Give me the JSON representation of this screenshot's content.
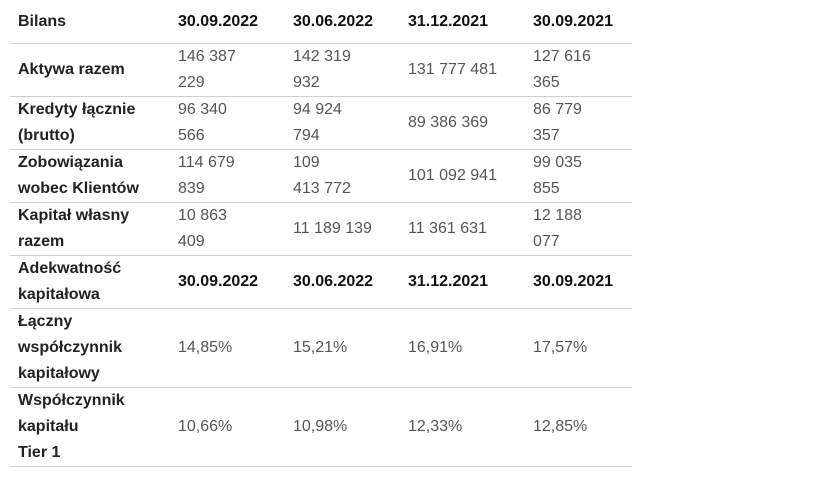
{
  "sections": [
    {
      "header": [
        [
          "Bilans"
        ],
        [
          "30.09.2022"
        ],
        [
          "30.06.2022"
        ],
        [
          "31.12.2021"
        ],
        [
          "30.09.2021"
        ]
      ],
      "rows": [
        [
          [
            "Aktywa razem"
          ],
          [
            "146 387",
            "229"
          ],
          [
            "142 319",
            "932"
          ],
          [
            "131 777 481"
          ],
          [
            "127 616",
            "365"
          ]
        ],
        [
          [
            "Kredyty łącznie",
            "(brutto)"
          ],
          [
            "96 340",
            "566"
          ],
          [
            "94 924",
            "794"
          ],
          [
            "89 386 369"
          ],
          [
            "86 779",
            "357"
          ]
        ],
        [
          [
            "Zobowiązania",
            "wobec Klientów"
          ],
          [
            "114 679",
            "839"
          ],
          [
            "109",
            "413 772"
          ],
          [
            "101 092 941"
          ],
          [
            "99 035",
            "855"
          ]
        ],
        [
          [
            "Kapitał własny",
            "razem"
          ],
          [
            "10 863",
            "409"
          ],
          [
            "11 189 139"
          ],
          [
            "11 361 631"
          ],
          [
            "12 188",
            "077"
          ]
        ]
      ]
    },
    {
      "header": [
        [
          "Adekwatność",
          "kapitałowa"
        ],
        [
          "30.09.2022"
        ],
        [
          "30.06.2022"
        ],
        [
          "31.12.2021"
        ],
        [
          "30.09.2021"
        ]
      ],
      "rows": [
        [
          [
            "Łączny",
            "współczynnik",
            "kapitałowy"
          ],
          [
            "14,85%"
          ],
          [
            "15,21%"
          ],
          [
            "16,91%"
          ],
          [
            "17,57%"
          ]
        ],
        [
          [
            "Współczynnik",
            "kapitału",
            "Tier 1"
          ],
          [
            "10,66%"
          ],
          [
            "10,98%"
          ],
          [
            "12,33%"
          ],
          [
            "12,85%"
          ]
        ]
      ]
    }
  ]
}
